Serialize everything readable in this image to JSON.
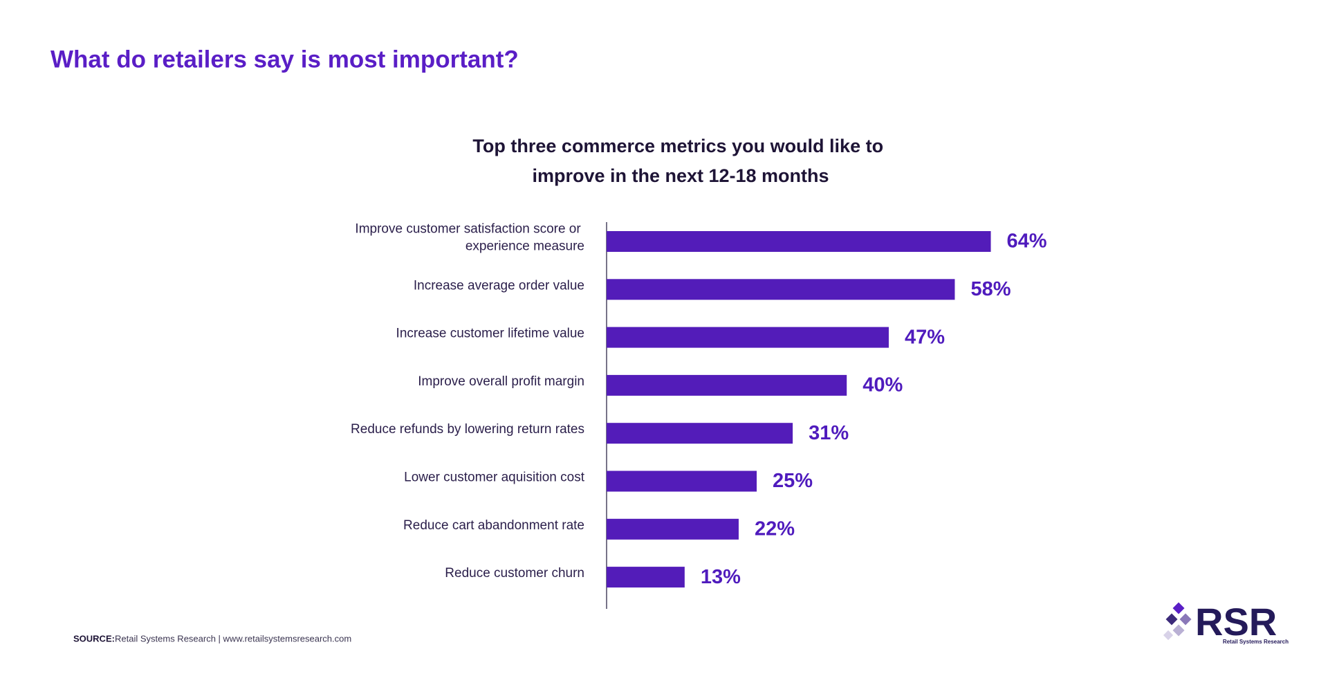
{
  "header": {
    "title": "What do retailers say is most important?"
  },
  "chart_data": {
    "type": "bar",
    "orientation": "horizontal",
    "title": "Top three commerce metrics you would like to improve in the next 12-18 months",
    "categories": [
      "Improve customer satisfaction score or experience measure",
      "Increase average order value",
      "Increase customer lifetime value",
      "Improve overall profit margin",
      "Reduce refunds by lowering return rates",
      "Lower customer aquisition cost",
      "Reduce cart abandonment rate",
      "Reduce customer churn"
    ],
    "values": [
      64,
      58,
      47,
      40,
      31,
      25,
      22,
      13
    ],
    "value_labels": [
      "64%",
      "58%",
      "47%",
      "40%",
      "31%",
      "25%",
      "22%",
      "13%"
    ],
    "color": "#531cb9"
  },
  "source": {
    "label": "SOURCE:",
    "text": "Retail Systems Research | www.retailsystemsresearch.com"
  },
  "logo": {
    "text": "RSR",
    "tagline": "Retail Systems Research"
  }
}
